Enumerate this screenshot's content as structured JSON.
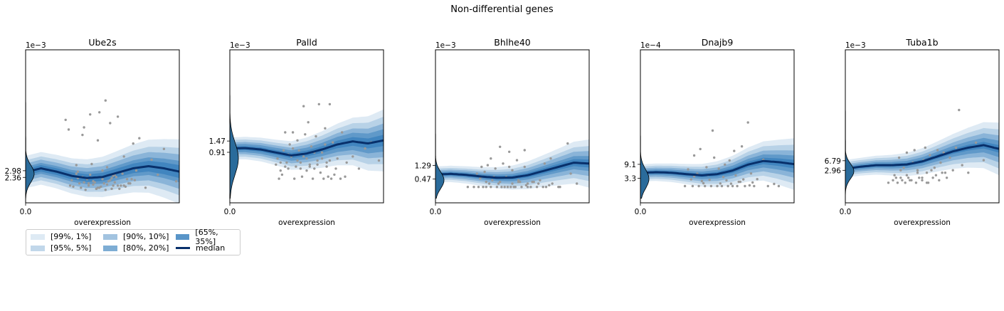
{
  "figure_title": "Non-differential genes",
  "colors": {
    "band_fill": "#2171b5",
    "band_opacities": [
      0.15,
      0.2,
      0.3,
      0.4,
      0.5
    ],
    "median": "#08306b",
    "points": "#999999",
    "violin": "#2a6b9b",
    "violin_edge": "#000000"
  },
  "legend": {
    "items": [
      {
        "label": "[99%, 1%]",
        "kind": "band",
        "opacity": 0.15
      },
      {
        "label": "[95%, 5%]",
        "kind": "band",
        "opacity": 0.25
      },
      {
        "label": "[90%, 10%]",
        "kind": "band",
        "opacity": 0.4
      },
      {
        "label": "[80%, 20%]",
        "kind": "band",
        "opacity": 0.55
      },
      {
        "label": "[65%, 35%]",
        "kind": "band",
        "opacity": 0.7
      },
      {
        "label": "median",
        "kind": "line"
      }
    ]
  },
  "chart_data": [
    {
      "type": "area",
      "title": "Ube2s",
      "xlabel": "overexpression",
      "ylabel": "",
      "scale_label": "1e−3",
      "x_ticks": [
        "0.0"
      ],
      "y_ticks": [
        {
          "label": "2.98",
          "value": 2.98
        },
        {
          "label": "2.36",
          "value": 2.36
        }
      ],
      "ylim": [
        0.0,
        14.2
      ],
      "median_curve": {
        "x": [
          0.0,
          0.1,
          0.2,
          0.3,
          0.4,
          0.5,
          0.6,
          0.7,
          0.8,
          0.9,
          1.0
        ],
        "y": [
          2.85,
          3.2,
          2.9,
          2.5,
          2.3,
          2.4,
          2.8,
          3.2,
          3.4,
          3.2,
          2.9
        ]
      },
      "band_half_widths": [
        0.3,
        0.5,
        0.8,
        1.1,
        1.5
      ],
      "band_growth": 1.0,
      "points": {
        "x": [
          0.26,
          0.28,
          0.3,
          0.31,
          0.33,
          0.34,
          0.36,
          0.37,
          0.38,
          0.4,
          0.41,
          0.42,
          0.43,
          0.44,
          0.46,
          0.47,
          0.48,
          0.5,
          0.51,
          0.52,
          0.53,
          0.55,
          0.56,
          0.58,
          0.6,
          0.62,
          0.64,
          0.66,
          0.68,
          0.7,
          0.72,
          0.74,
          0.78,
          0.82,
          0.86,
          0.9,
          0.98,
          0.35,
          0.39,
          0.45,
          0.49,
          0.54,
          0.57,
          0.61,
          0.65,
          0.3,
          0.44,
          0.52,
          0.59,
          0.67,
          0.34,
          0.42,
          0.5,
          0.56,
          0.63,
          0.38,
          0.47,
          0.55,
          0.6,
          0.69,
          0.29,
          0.37,
          0.46,
          0.53,
          0.58,
          0.71,
          0.33,
          0.41,
          0.48,
          0.57,
          0.64
        ],
        "y": [
          7.7,
          6.8,
          2.5,
          1.5,
          3.5,
          2.3,
          1.4,
          6.3,
          7.0,
          2.2,
          1.6,
          8.2,
          3.6,
          2.0,
          1.3,
          5.8,
          8.4,
          2.2,
          1.8,
          9.5,
          3.3,
          7.4,
          1.3,
          2.6,
          8.0,
          1.6,
          4.3,
          2.2,
          1.8,
          5.5,
          3.0,
          6.0,
          1.4,
          4.0,
          2.6,
          5.0,
          2.0,
          1.8,
          1.2,
          1.9,
          1.5,
          2.0,
          1.6,
          1.3,
          1.5,
          2.1,
          1.7,
          1.2,
          2.4,
          1.8,
          2.9,
          2.6,
          3.0,
          2.3,
          2.7,
          1.9,
          1.4,
          2.1,
          1.6,
          2.2,
          1.6,
          2.4,
          1.3,
          1.7,
          1.9,
          2.1,
          2.7,
          1.8,
          1.4,
          2.5,
          1.6
        ]
      },
      "violin": {
        "center": 2.7,
        "spread": 0.8,
        "top": 14.0,
        "width": 0.6
      }
    },
    {
      "type": "area",
      "title": "Palld",
      "xlabel": "overexpression",
      "ylabel": "",
      "scale_label": "1e−3",
      "x_ticks": [
        "0.0"
      ],
      "y_ticks": [
        {
          "label": "1.47",
          "value": 1.47
        },
        {
          "label": "0.91",
          "value": 0.91
        }
      ],
      "ylim": [
        -1.6,
        6.0
      ],
      "median_curve": {
        "x": [
          0.0,
          0.1,
          0.2,
          0.3,
          0.4,
          0.5,
          0.6,
          0.7,
          0.8,
          0.9,
          1.0
        ],
        "y": [
          1.1,
          1.12,
          1.05,
          0.9,
          0.75,
          0.85,
          1.05,
          1.3,
          1.45,
          1.35,
          1.5
        ]
      },
      "band_half_widths": [
        0.1,
        0.2,
        0.3,
        0.42,
        0.55
      ],
      "band_growth": 1.8,
      "points": {
        "x": [
          0.3,
          0.31,
          0.33,
          0.35,
          0.36,
          0.37,
          0.38,
          0.39,
          0.4,
          0.41,
          0.43,
          0.44,
          0.45,
          0.46,
          0.48,
          0.49,
          0.5,
          0.51,
          0.52,
          0.53,
          0.55,
          0.56,
          0.57,
          0.58,
          0.6,
          0.62,
          0.63,
          0.65,
          0.67,
          0.7,
          0.73,
          0.76,
          0.8,
          0.84,
          0.88,
          0.92,
          0.97,
          0.32,
          0.34,
          0.42,
          0.47,
          0.54,
          0.59,
          0.61,
          0.64,
          0.66,
          0.68,
          0.72,
          0.75,
          0.36,
          0.44,
          0.5,
          0.57,
          0.63,
          0.69,
          0.38,
          0.46,
          0.52,
          0.6,
          0.65,
          0.33,
          0.41,
          0.48,
          0.55,
          0.62
        ],
        "y": [
          0.3,
          0.6,
          0.4,
          1.0,
          1.9,
          0.4,
          0.1,
          1.3,
          0.7,
          1.9,
          0.2,
          1.5,
          1.0,
          0.1,
          3.2,
          1.8,
          0.6,
          2.4,
          0.3,
          1.2,
          0.1,
          1.7,
          0.5,
          3.3,
          0.9,
          2.1,
          0.2,
          3.3,
          1.4,
          0.6,
          1.9,
          0.4,
          0.7,
          0.1,
          1.1,
          1.4,
          0.5,
          -0.4,
          -0.2,
          -0.4,
          -0.3,
          -0.4,
          -0.1,
          -0.4,
          -0.3,
          -0.4,
          -0.2,
          -0.4,
          -0.3,
          0.2,
          0.5,
          0.0,
          0.3,
          0.4,
          0.1,
          0.8,
          0.4,
          0.2,
          0.6,
          0.5,
          0.0,
          1.1,
          0.7,
          0.9,
          1.3
        ]
      },
      "violin": {
        "center": 0.6,
        "spread": 0.8,
        "top": 6.0,
        "width": 0.6
      }
    },
    {
      "type": "area",
      "title": "Bhlhe40",
      "xlabel": "overexpression",
      "ylabel": "",
      "scale_label": "1e−3",
      "x_ticks": [
        "0.0"
      ],
      "y_ticks": [
        {
          "label": "1.29",
          "value": 1.29
        },
        {
          "label": "0.47",
          "value": 0.47
        }
      ],
      "ylim": [
        -0.95,
        8.2
      ],
      "median_curve": {
        "x": [
          0.0,
          0.1,
          0.2,
          0.3,
          0.4,
          0.5,
          0.6,
          0.7,
          0.8,
          0.9,
          1.0
        ],
        "y": [
          0.75,
          0.78,
          0.72,
          0.62,
          0.55,
          0.56,
          0.7,
          0.95,
          1.2,
          1.45,
          1.4
        ]
      },
      "band_half_widths": [
        0.08,
        0.15,
        0.25,
        0.35,
        0.48
      ],
      "band_growth": 2.0,
      "points": {
        "x": [
          0.21,
          0.25,
          0.27,
          0.28,
          0.3,
          0.31,
          0.32,
          0.33,
          0.34,
          0.35,
          0.36,
          0.38,
          0.39,
          0.4,
          0.41,
          0.42,
          0.43,
          0.44,
          0.45,
          0.47,
          0.48,
          0.49,
          0.5,
          0.51,
          0.52,
          0.53,
          0.54,
          0.56,
          0.58,
          0.6,
          0.62,
          0.64,
          0.66,
          0.68,
          0.7,
          0.72,
          0.74,
          0.76,
          0.8,
          0.86,
          0.58,
          0.29,
          0.33,
          0.37,
          0.46,
          0.5,
          0.55,
          0.59,
          0.63,
          0.67,
          0.71,
          0.75,
          0.81,
          0.88,
          0.92,
          0.3,
          0.36,
          0.42,
          0.48,
          0.54,
          0.6
        ],
        "y": [
          0.0,
          0.0,
          0.8,
          0.0,
          1.2,
          0.0,
          0.9,
          0.0,
          1.3,
          0.2,
          0.0,
          0.6,
          1.1,
          0.0,
          0.2,
          2.4,
          0.0,
          1.4,
          0.0,
          0.0,
          2.1,
          0.0,
          1.0,
          0.0,
          0.0,
          1.6,
          0.3,
          0.0,
          1.2,
          0.0,
          0.0,
          0.3,
          0.0,
          0.4,
          0.0,
          0.0,
          0.1,
          0.2,
          0.0,
          2.6,
          2.2,
          0.5,
          0.3,
          0.4,
          0.6,
          0.2,
          0.3,
          0.1,
          0.3,
          0.2,
          1.4,
          1.7,
          0.0,
          0.8,
          0.2,
          0.6,
          1.7,
          0.3,
          1.2,
          0.4,
          0.2
        ]
      },
      "violin": {
        "center": 0.4,
        "spread": 0.5,
        "top": 5.2,
        "width": 0.6
      }
    },
    {
      "type": "area",
      "title": "Dnajb9",
      "xlabel": "overexpression",
      "ylabel": "",
      "scale_label": "1e−4",
      "x_ticks": [
        "0.0"
      ],
      "y_ticks": [
        {
          "label": "9.1",
          "value": 9.1
        },
        {
          "label": "3.3",
          "value": 3.3
        }
      ],
      "ylim": [
        -7.0,
        57.0
      ],
      "median_curve": {
        "x": [
          0.0,
          0.1,
          0.2,
          0.3,
          0.4,
          0.5,
          0.6,
          0.7,
          0.8,
          0.9,
          1.0
        ],
        "y": [
          5.5,
          5.8,
          5.6,
          5.0,
          4.5,
          5.0,
          6.5,
          9.0,
          10.5,
          10.0,
          9.2
        ]
      },
      "band_half_widths": [
        0.6,
        1.2,
        1.9,
        2.7,
        3.6
      ],
      "band_growth": 2.0,
      "points": {
        "x": [
          0.29,
          0.31,
          0.33,
          0.34,
          0.35,
          0.37,
          0.38,
          0.39,
          0.4,
          0.42,
          0.43,
          0.44,
          0.46,
          0.47,
          0.48,
          0.5,
          0.51,
          0.53,
          0.54,
          0.55,
          0.57,
          0.58,
          0.6,
          0.61,
          0.62,
          0.63,
          0.65,
          0.66,
          0.68,
          0.7,
          0.72,
          0.74,
          0.76,
          0.8,
          0.83,
          0.87,
          0.9,
          0.35,
          0.41,
          0.45,
          0.52,
          0.56,
          0.59,
          0.64,
          0.67,
          0.71,
          0.73
        ],
        "y": [
          0.0,
          7.0,
          2.8,
          0.0,
          12.8,
          5.2,
          0.0,
          15.5,
          2.1,
          0.0,
          7.9,
          4.6,
          0.0,
          23.2,
          11.9,
          0.0,
          7.3,
          0.0,
          3.8,
          9.0,
          0.0,
          10.7,
          0.0,
          14.7,
          4.5,
          0.0,
          1.8,
          16.6,
          0.0,
          26.6,
          5.3,
          0.0,
          2.9,
          11.0,
          0.0,
          0.9,
          0.0,
          4.0,
          1.2,
          2.6,
          1.1,
          2.4,
          1.0,
          1.8,
          2.8,
          0.3,
          1.5
        ]
      },
      "violin": {
        "center": 3.0,
        "spread": 4.0,
        "top": 34.0,
        "width": 0.6
      }
    },
    {
      "type": "area",
      "title": "Tuba1b",
      "xlabel": "overexpression",
      "ylabel": "",
      "scale_label": "1e−3",
      "x_ticks": [
        "0.0"
      ],
      "y_ticks": [
        {
          "label": "6.79",
          "value": 6.79
        },
        {
          "label": "2.96",
          "value": 2.96
        }
      ],
      "ylim": [
        -10.0,
        51.0
      ],
      "median_curve": {
        "x": [
          0.0,
          0.1,
          0.2,
          0.3,
          0.4,
          0.5,
          0.6,
          0.7,
          0.8,
          0.9,
          1.0
        ],
        "y": [
          3.6,
          4.4,
          5.0,
          5.0,
          5.3,
          6.5,
          8.5,
          10.5,
          12.0,
          13.0,
          11.5
        ]
      },
      "band_half_widths": [
        0.5,
        1.1,
        1.8,
        2.6,
        3.5
      ],
      "band_growth": 2.0,
      "points": {
        "x": [
          0.28,
          0.3,
          0.31,
          0.32,
          0.34,
          0.35,
          0.36,
          0.37,
          0.38,
          0.39,
          0.4,
          0.41,
          0.42,
          0.44,
          0.45,
          0.46,
          0.47,
          0.48,
          0.5,
          0.51,
          0.52,
          0.53,
          0.54,
          0.55,
          0.57,
          0.58,
          0.6,
          0.61,
          0.63,
          0.64,
          0.66,
          0.68,
          0.7,
          0.72,
          0.74,
          0.76,
          0.8,
          0.85,
          0.9,
          0.33,
          0.36,
          0.4,
          0.43,
          0.47,
          0.5,
          0.53,
          0.56,
          0.59,
          0.62,
          0.65
        ],
        "y": [
          -2.0,
          5.0,
          -1.0,
          1.0,
          -2.0,
          8.0,
          0.0,
          -1.0,
          4.0,
          -2.0,
          10.0,
          0.0,
          -1.0,
          6.0,
          11.0,
          -2.0,
          3.0,
          0.0,
          -1.0,
          7.0,
          12.0,
          2.0,
          -2.0,
          9.0,
          0.0,
          4.0,
          11.0,
          -1.0,
          2.0,
          10.0,
          0.0,
          8.0,
          3.0,
          12.0,
          27.0,
          5.0,
          2.0,
          14.0,
          7.0,
          0.0,
          3.0,
          1.0,
          -1.0,
          2.0,
          0.0,
          -2.0,
          3.0,
          1.0,
          6.0,
          2.0
        ]
      },
      "violin": {
        "center": 2.6,
        "spread": 3.0,
        "top": 44.0,
        "width": 0.6
      }
    }
  ]
}
